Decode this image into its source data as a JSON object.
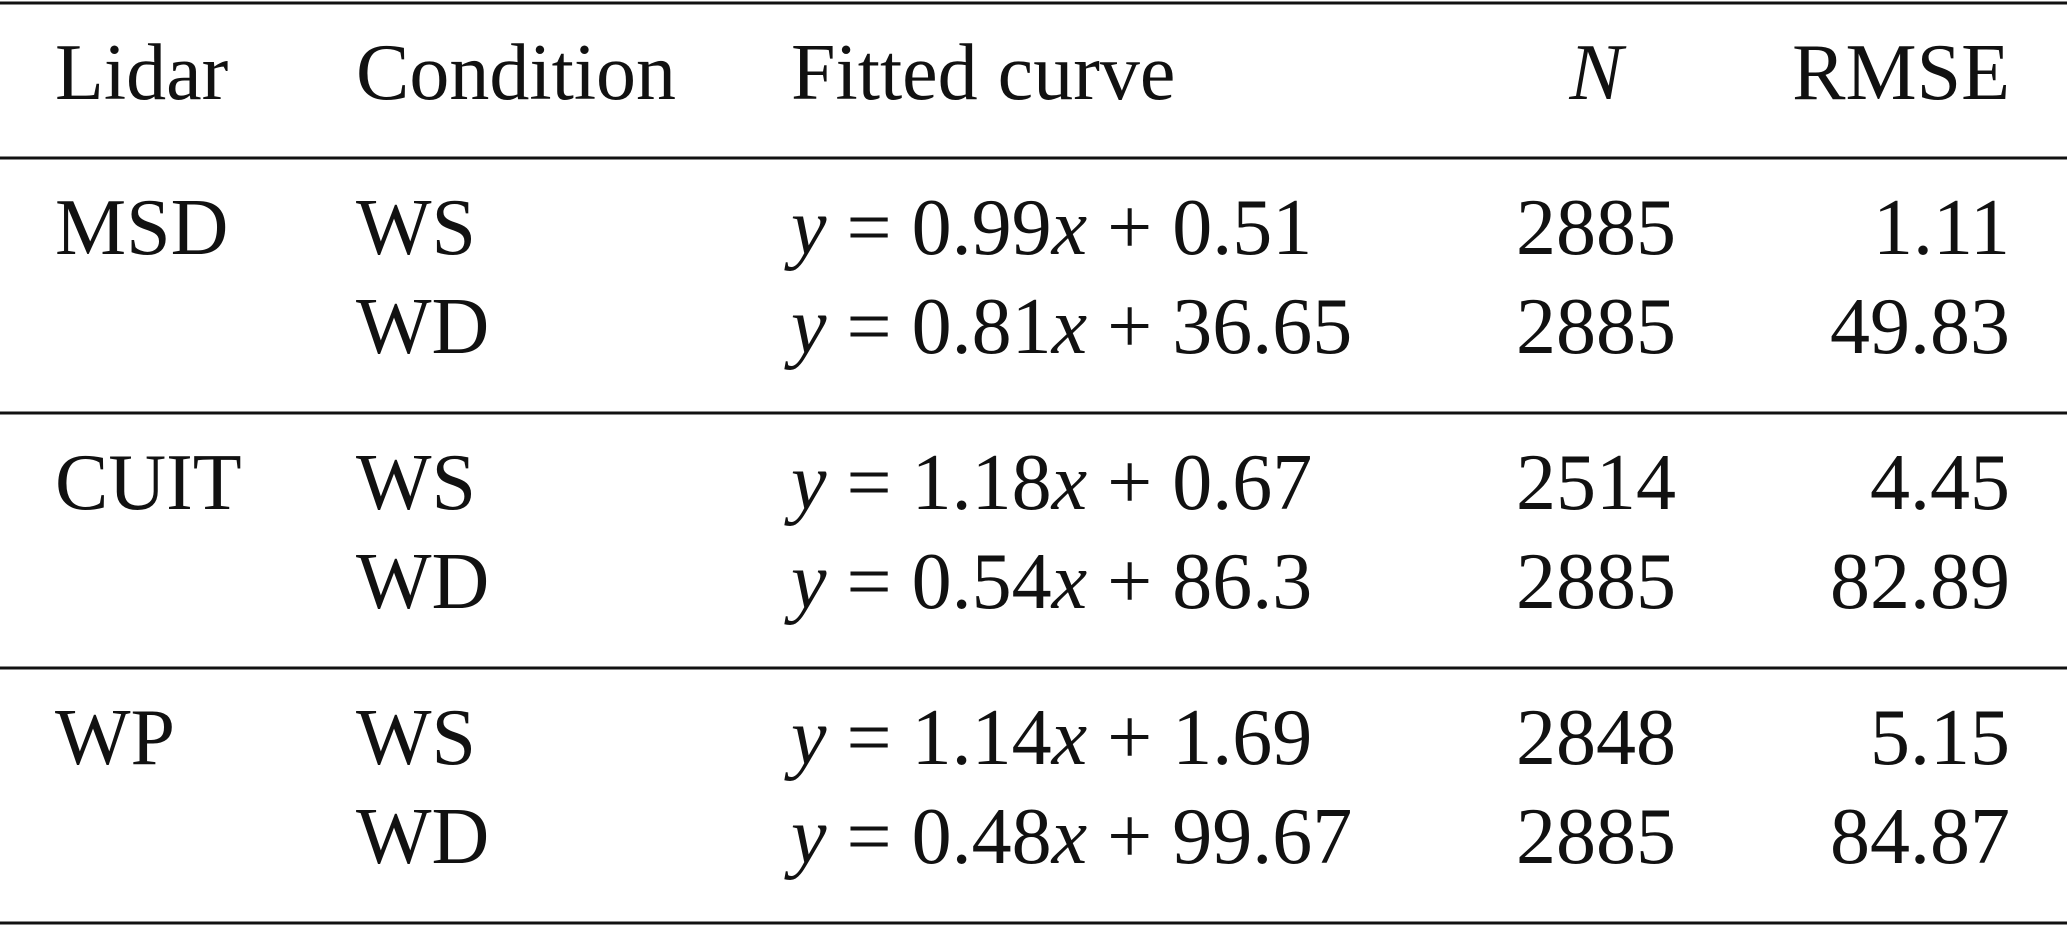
{
  "table": {
    "header": [
      "Lidar",
      "Condition",
      "Fitted curve",
      "N",
      "RMSE"
    ],
    "groups": [
      {
        "lidar": "MSD",
        "rows": [
          {
            "condition": "WS",
            "curve": "y = 0.99x + 0.51",
            "n": 2885,
            "rmse": 1.11
          },
          {
            "condition": "WD",
            "curve": "y = 0.81x + 36.65",
            "n": 2885,
            "rmse": 49.83
          }
        ]
      },
      {
        "lidar": "CUIT",
        "rows": [
          {
            "condition": "WS",
            "curve": "y = 1.18x + 0.67",
            "n": 2514,
            "rmse": 4.45
          },
          {
            "condition": "WD",
            "curve": "y = 0.54x + 86.3",
            "n": 2885,
            "rmse": 82.89
          }
        ]
      },
      {
        "lidar": "WP",
        "rows": [
          {
            "condition": "WS",
            "curve": "y = 1.14x + 1.69",
            "n": 2848,
            "rmse": 5.15
          },
          {
            "condition": "WD",
            "curve": "y = 0.48x + 99.67",
            "n": 2885,
            "rmse": 84.87
          }
        ]
      }
    ]
  }
}
